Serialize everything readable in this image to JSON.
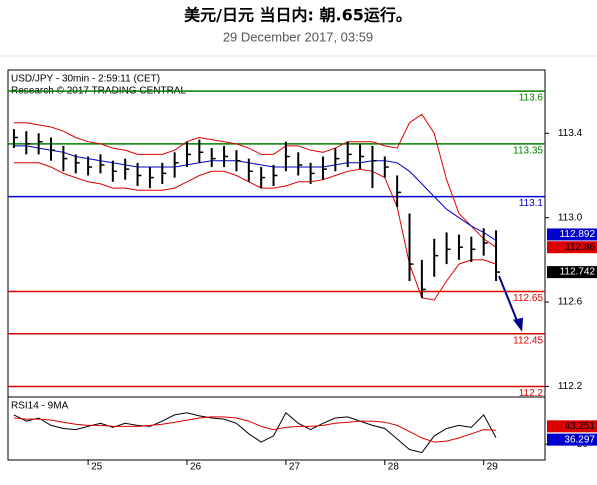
{
  "chart_data": {
    "type": "ohlc",
    "title": "美元/日元 当日内: 朝.65运行。",
    "subtitle": "29 December 2017, 03:59",
    "annotations": [
      "USD/JPY - 30min - 2:59:11 (CET)",
      "Research © 2017 TRADING CENTRAL"
    ],
    "x": [
      24.25,
      24.375,
      24.5,
      24.625,
      24.75,
      24.875,
      25.0,
      25.125,
      25.25,
      25.375,
      25.5,
      25.625,
      25.75,
      25.875,
      26.0,
      26.125,
      26.25,
      26.375,
      26.5,
      26.625,
      26.75,
      26.875,
      27.0,
      27.125,
      27.25,
      27.375,
      27.5,
      27.625,
      27.75,
      27.875,
      28.0,
      28.125,
      28.25,
      28.375,
      28.5,
      28.625,
      28.75,
      28.875,
      29.0,
      29.125
    ],
    "high": [
      113.42,
      113.41,
      113.4,
      113.38,
      113.34,
      113.3,
      113.29,
      113.3,
      113.27,
      113.28,
      113.26,
      113.24,
      113.26,
      113.31,
      113.36,
      113.37,
      113.33,
      113.34,
      113.32,
      113.28,
      113.24,
      113.25,
      113.36,
      113.31,
      113.26,
      113.29,
      113.33,
      113.36,
      113.35,
      113.34,
      113.29,
      113.2,
      113.02,
      112.8,
      112.9,
      112.93,
      112.92,
      112.91,
      112.95,
      112.94
    ],
    "low": [
      113.33,
      113.3,
      113.3,
      113.27,
      113.22,
      113.21,
      113.2,
      113.21,
      113.17,
      113.18,
      113.15,
      113.14,
      113.16,
      113.19,
      113.24,
      113.26,
      113.24,
      113.24,
      113.22,
      113.17,
      113.14,
      113.15,
      113.22,
      113.2,
      113.16,
      113.18,
      113.22,
      113.24,
      113.23,
      113.14,
      113.19,
      113.05,
      112.7,
      112.62,
      112.72,
      112.78,
      112.8,
      112.79,
      112.82,
      112.7
    ],
    "close": [
      113.38,
      113.35,
      113.36,
      113.32,
      113.28,
      113.26,
      113.24,
      113.25,
      113.22,
      113.23,
      113.2,
      113.19,
      113.21,
      113.26,
      113.3,
      113.31,
      113.28,
      113.29,
      113.27,
      113.22,
      113.19,
      113.2,
      113.29,
      113.25,
      113.21,
      113.23,
      113.28,
      113.3,
      113.29,
      113.27,
      113.24,
      113.12,
      112.78,
      112.66,
      112.82,
      112.85,
      112.86,
      112.85,
      112.88,
      112.742
    ],
    "bar_color": "#000000",
    "bands": {
      "color": "#dd0000",
      "upper": [
        113.45,
        113.45,
        113.44,
        113.43,
        113.41,
        113.38,
        113.36,
        113.35,
        113.33,
        113.32,
        113.3,
        113.3,
        113.3,
        113.32,
        113.36,
        113.38,
        113.37,
        113.36,
        113.35,
        113.33,
        113.3,
        113.3,
        113.34,
        113.34,
        113.32,
        113.31,
        113.33,
        113.36,
        113.36,
        113.36,
        113.34,
        113.33,
        113.45,
        113.49,
        113.4,
        113.18,
        113.02,
        112.96,
        112.9,
        112.86
      ],
      "lower": [
        113.26,
        113.26,
        113.26,
        113.24,
        113.21,
        113.19,
        113.17,
        113.16,
        113.14,
        113.14,
        113.13,
        113.13,
        113.13,
        113.14,
        113.17,
        113.2,
        113.22,
        113.22,
        113.2,
        113.17,
        113.14,
        113.14,
        113.15,
        113.17,
        113.17,
        113.18,
        113.2,
        113.22,
        113.23,
        113.22,
        113.19,
        113.05,
        112.78,
        112.62,
        112.61,
        112.7,
        112.78,
        112.8,
        112.8,
        112.78
      ]
    },
    "ma": {
      "color": "#0000cc",
      "values": [
        113.34,
        113.34,
        113.33,
        113.32,
        113.31,
        113.29,
        113.28,
        113.27,
        113.26,
        113.25,
        113.24,
        113.24,
        113.24,
        113.24,
        113.25,
        113.26,
        113.27,
        113.27,
        113.27,
        113.26,
        113.25,
        113.24,
        113.24,
        113.24,
        113.24,
        113.24,
        113.25,
        113.26,
        113.26,
        113.27,
        113.27,
        113.26,
        113.22,
        113.16,
        113.1,
        113.04,
        113.0,
        112.96,
        112.93,
        112.892
      ]
    },
    "levels": [
      {
        "value": 113.6,
        "color": "#008000"
      },
      {
        "value": 113.35,
        "color": "#008000"
      },
      {
        "value": 113.1,
        "color": "#0000cc"
      },
      {
        "value": 112.65,
        "color": "#dd0000"
      },
      {
        "value": 112.45,
        "color": "#dd0000"
      },
      {
        "value": 112.2,
        "color": "#dd0000"
      }
    ],
    "xlim": [
      24.19,
      29.62
    ],
    "xticks": [
      25,
      26,
      27,
      28,
      29
    ],
    "ylim": [
      112.15,
      113.7
    ],
    "yticks": [
      113.4,
      {
        "value": 113,
        "label": "113.0"
      },
      112.6,
      112.2
    ],
    "rsi": {
      "title": "RSI14 - 9MA",
      "ylim": [
        15,
        75
      ],
      "yticks": [
        30
      ],
      "color": "#000000",
      "values": [
        58,
        52,
        55,
        48,
        45,
        44,
        47,
        50,
        46,
        50,
        48,
        47,
        52,
        58,
        60,
        57,
        55,
        54,
        50,
        40,
        32,
        38,
        60,
        50,
        44,
        50,
        55,
        56,
        52,
        48,
        45,
        35,
        25,
        22,
        38,
        45,
        48,
        46,
        58,
        36.297
      ],
      "ma": {
        "color": "#dd0000",
        "values": [
          55,
          54,
          54,
          53,
          51,
          49,
          48,
          48,
          47,
          47,
          47,
          48,
          49,
          51,
          53,
          55,
          56,
          56,
          55,
          52,
          47,
          44,
          46,
          47,
          47,
          48,
          50,
          51,
          52,
          52,
          51,
          48,
          42,
          36,
          32,
          33,
          36,
          40,
          44,
          43.251
        ]
      }
    }
  }
}
